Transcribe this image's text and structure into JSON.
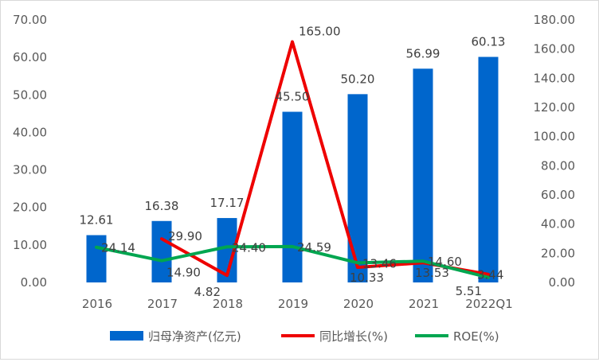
{
  "chart_data": {
    "type": "bar",
    "categories": [
      "2016",
      "2017",
      "2018",
      "2019",
      "2020",
      "2021",
      "2022Q1"
    ],
    "left_axis": {
      "min": 0,
      "max": 70,
      "step": 10,
      "tick_labels": [
        "0.00",
        "10.00",
        "20.00",
        "30.00",
        "40.00",
        "50.00",
        "60.00",
        "70.00"
      ]
    },
    "right_axis": {
      "min": 0,
      "max": 180,
      "step": 20,
      "tick_labels": [
        "0.00",
        "20.00",
        "40.00",
        "60.00",
        "80.00",
        "100.00",
        "120.00",
        "140.00",
        "160.00",
        "180.00"
      ]
    },
    "series": [
      {
        "name": "归母净资产(亿元)",
        "kind": "bar",
        "axis": "left",
        "color": "#0066CC",
        "values": [
          12.61,
          16.38,
          17.17,
          45.5,
          50.2,
          56.99,
          60.13
        ],
        "labels": [
          "12.61",
          "16.38",
          "17.17",
          "45.50",
          "50.20",
          "56.99",
          "60.13"
        ]
      },
      {
        "name": "同比增长(%)",
        "kind": "line",
        "axis": "right",
        "color": "#EE0000",
        "values": [
          null,
          29.9,
          4.82,
          165.0,
          10.33,
          13.53,
          5.51
        ],
        "labels": [
          "",
          "29.90",
          "4.82",
          "165.00",
          "10.33",
          "13.53",
          "5.51"
        ]
      },
      {
        "name": "ROE(%)",
        "kind": "line",
        "axis": "right",
        "color": "#00A650",
        "values": [
          24.14,
          14.9,
          24.4,
          24.59,
          13.46,
          14.6,
          3.44
        ],
        "labels": [
          "24.14",
          "14.90",
          "24.40",
          "24.59",
          "13.46",
          "14.60",
          "3.44"
        ]
      }
    ],
    "legend_position": "bottom",
    "grid": false
  }
}
